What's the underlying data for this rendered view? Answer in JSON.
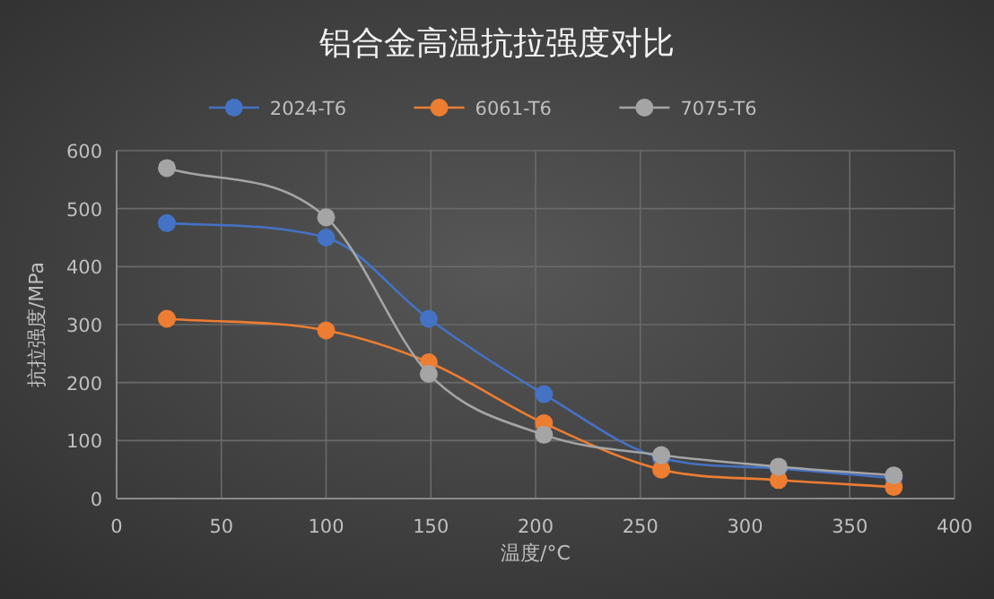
{
  "chart_data": {
    "type": "line",
    "title": "铝合金高温抗拉强度对比",
    "xlabel": "温度/°C",
    "ylabel": "抗拉强度/MPa",
    "x": [
      24,
      100,
      149,
      204,
      260,
      316,
      371
    ],
    "series": [
      {
        "name": "2024-T6",
        "color": "#4472c4",
        "values": [
          475,
          450,
          310,
          180,
          70,
          52,
          35
        ]
      },
      {
        "name": "6061-T6",
        "color": "#ed7d31",
        "values": [
          310,
          290,
          235,
          130,
          50,
          32,
          20
        ]
      },
      {
        "name": "7075-T6",
        "color": "#a5a5a5",
        "values": [
          570,
          485,
          215,
          110,
          75,
          55,
          40
        ]
      }
    ],
    "xlim": [
      0,
      400
    ],
    "xticks": [
      0,
      50,
      100,
      150,
      200,
      250,
      300,
      350,
      400
    ],
    "ylim": [
      0,
      600
    ],
    "yticks": [
      0,
      100,
      200,
      300,
      400,
      500,
      600
    ],
    "grid": true,
    "legend": "top",
    "marker": "circle",
    "line_style": "solid"
  }
}
